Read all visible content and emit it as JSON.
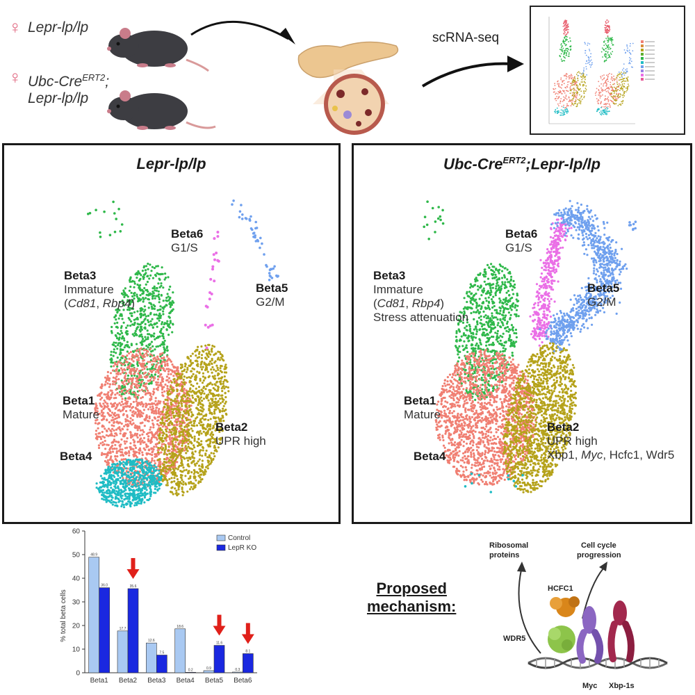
{
  "top": {
    "genotype1": "Lepr-lp/lp",
    "genotype2_line1": "Ubc-Cre",
    "genotype2_sup": "ERT2",
    "genotype2_line1_suffix": ";",
    "genotype2_line2": "Lepr-lp/lp",
    "female_symbol": "♀",
    "scrna_label": "scRNA-seq"
  },
  "panels": {
    "left": {
      "title": "Lepr-lp/lp",
      "beta6": "Beta6",
      "beta6_sub": "G1/S",
      "beta5": "Beta5",
      "beta5_sub": "G2/M",
      "beta3": "Beta3",
      "beta3_sub": "Immature",
      "beta3_genes_open": "(",
      "beta3_gene1": "Cd81",
      "beta3_sep": ", ",
      "beta3_gene2": "Rbp4",
      "beta3_genes_close": ")",
      "beta1": "Beta1",
      "beta1_sub": "Mature",
      "beta2": "Beta2",
      "beta2_sub": "UPR high",
      "beta4": "Beta4"
    },
    "right": {
      "title_pre": "Ubc-Cre",
      "title_sup": "ERT2",
      "title_post": ";Lepr-lp/lp",
      "beta6": "Beta6",
      "beta6_sub": "G1/S",
      "beta5": "Beta5",
      "beta5_sub": "G2/M",
      "beta3": "Beta3",
      "beta3_sub": "Immature",
      "beta3_genes_open": "(",
      "beta3_gene1": "Cd81",
      "beta3_sep": ", ",
      "beta3_gene2": "Rbp4",
      "beta3_genes_close": ")",
      "beta3_extra": "Stress attenuation",
      "beta1": "Beta1",
      "beta1_sub": "Mature",
      "beta2": "Beta2",
      "beta2_sub": "UPR high",
      "beta2_genes_pre": "Xbp1, ",
      "beta2_gene_myc": "Myc",
      "beta2_genes_post": ", Hcfc1, Wdr5",
      "beta4": "Beta4"
    }
  },
  "colors": {
    "beta1": "#f07f72",
    "beta2": "#b5a21a",
    "beta3": "#2fb84a",
    "beta4": "#1fbcc4",
    "beta5": "#6fa0ee",
    "beta6": "#ea6fe6",
    "control": "#a9c9f2",
    "ko": "#1a28e0",
    "arrow": "#e0201a"
  },
  "chart_data": {
    "type": "bar",
    "ylabel": "% total beta cells",
    "categories": [
      "Beta1",
      "Beta2",
      "Beta3",
      "Beta4",
      "Beta5",
      "Beta6"
    ],
    "ylim": [
      0,
      60
    ],
    "yticks": [
      0,
      10,
      20,
      30,
      40,
      50,
      60
    ],
    "legend_position": "top-right",
    "series": [
      {
        "name": "Control",
        "values": [
          48.9,
          17.7,
          12.6,
          18.6,
          0.9,
          0.3
        ],
        "labels": [
          "48.9",
          "17.7",
          "12.6",
          "18.6",
          "0.9",
          "0.3"
        ]
      },
      {
        "name": "LepR KO",
        "values": [
          36.0,
          35.6,
          7.5,
          0.2,
          11.6,
          8.1
        ],
        "labels": [
          "36.0",
          "35.6",
          "7.5",
          "0.2",
          "11.6",
          "8.1"
        ]
      }
    ],
    "highlighted_categories": [
      "Beta2",
      "Beta5",
      "Beta6"
    ]
  },
  "mechanism": {
    "title_line1": "Proposed",
    "title_line2": "mechanism:",
    "ribosomal_line1": "Ribosomal",
    "ribosomal_line2": "proteins",
    "cellcycle_line1": "Cell cycle",
    "cellcycle_line2": "progression",
    "hcfc1": "HCFC1",
    "wdr5": "WDR5",
    "myc": "Myc",
    "xbp1s": "Xbp-1s"
  }
}
